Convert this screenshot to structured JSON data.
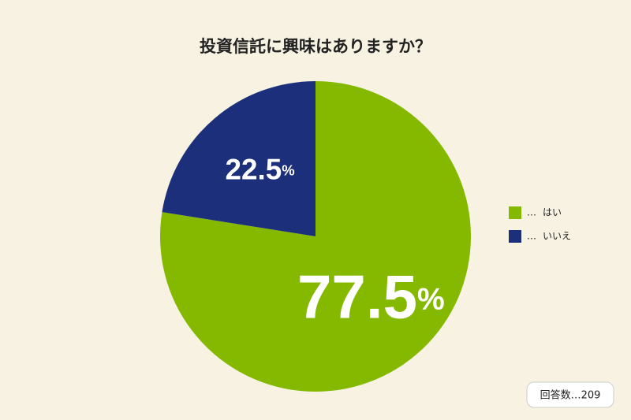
{
  "chart_data": {
    "type": "pie",
    "title": "投資信託に興味はありますか？",
    "categories": [
      "はい",
      "いいえ"
    ],
    "values": [
      77.5,
      22.5
    ],
    "value_labels": [
      "77.5%",
      "22.5%"
    ],
    "colors": [
      "#84b900",
      "#1c2f7b"
    ],
    "legend_marker": "…",
    "legend": "right",
    "note": "回答数…209"
  }
}
